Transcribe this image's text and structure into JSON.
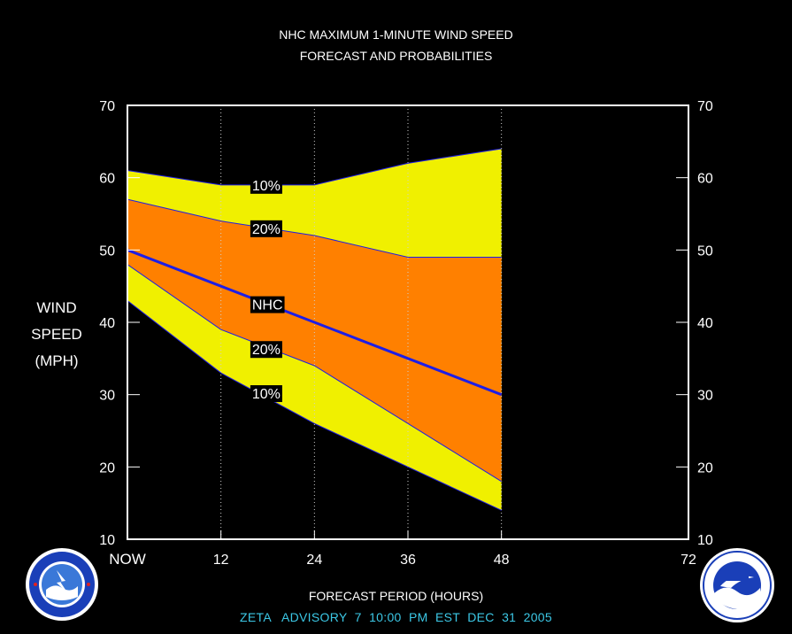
{
  "titles": {
    "line1": "NHC MAXIMUM 1-MINUTE WIND SPEED",
    "line2": "FORECAST AND PROBABILITIES"
  },
  "ylabel": {
    "line1": "WIND",
    "line2": "SPEED",
    "line3": "(MPH)"
  },
  "xlabel": "FORECAST PERIOD (HOURS)",
  "footer": "ZETA   ADVISORY  7  10:00  PM  EST  DEC  31  2005",
  "colors": {
    "background": "#000000",
    "band10": "#f0f000",
    "band20": "#ff8000",
    "nhc_line": "#1e1ee6",
    "axes": "#ffffff",
    "footer": "#3cc8e6"
  },
  "icons": {
    "left": "nws-logo-icon",
    "right": "noaa-logo-icon"
  },
  "chart_data": {
    "type": "area",
    "xlim": [
      0,
      72
    ],
    "ylim": [
      10,
      70
    ],
    "x_ticks": [
      {
        "value": 0,
        "label": "NOW"
      },
      {
        "value": 12,
        "label": "12"
      },
      {
        "value": 24,
        "label": "24"
      },
      {
        "value": 36,
        "label": "36"
      },
      {
        "value": 48,
        "label": "48"
      },
      {
        "value": 72,
        "label": "72"
      }
    ],
    "y_ticks": [
      10,
      20,
      30,
      40,
      50,
      60,
      70
    ],
    "grid_x": [
      12,
      24,
      36,
      48
    ],
    "x": [
      0,
      12,
      24,
      36,
      48
    ],
    "series": {
      "upper10": [
        61,
        59,
        59,
        62,
        64
      ],
      "upper20": [
        57,
        54,
        52,
        49,
        49
      ],
      "nhc": [
        50,
        45,
        40,
        35,
        30
      ],
      "lower20": [
        48,
        39,
        34,
        26,
        18
      ],
      "lower10": [
        43,
        33,
        26,
        20,
        14
      ]
    },
    "band_labels": [
      {
        "text": "10%",
        "x": 16,
        "y": 59
      },
      {
        "text": "20%",
        "x": 16,
        "y": 53
      },
      {
        "text": "NHC",
        "x": 16,
        "y": 42.5
      },
      {
        "text": "20%",
        "x": 16,
        "y": 36.3
      },
      {
        "text": "10%",
        "x": 16,
        "y": 30.2
      }
    ]
  }
}
